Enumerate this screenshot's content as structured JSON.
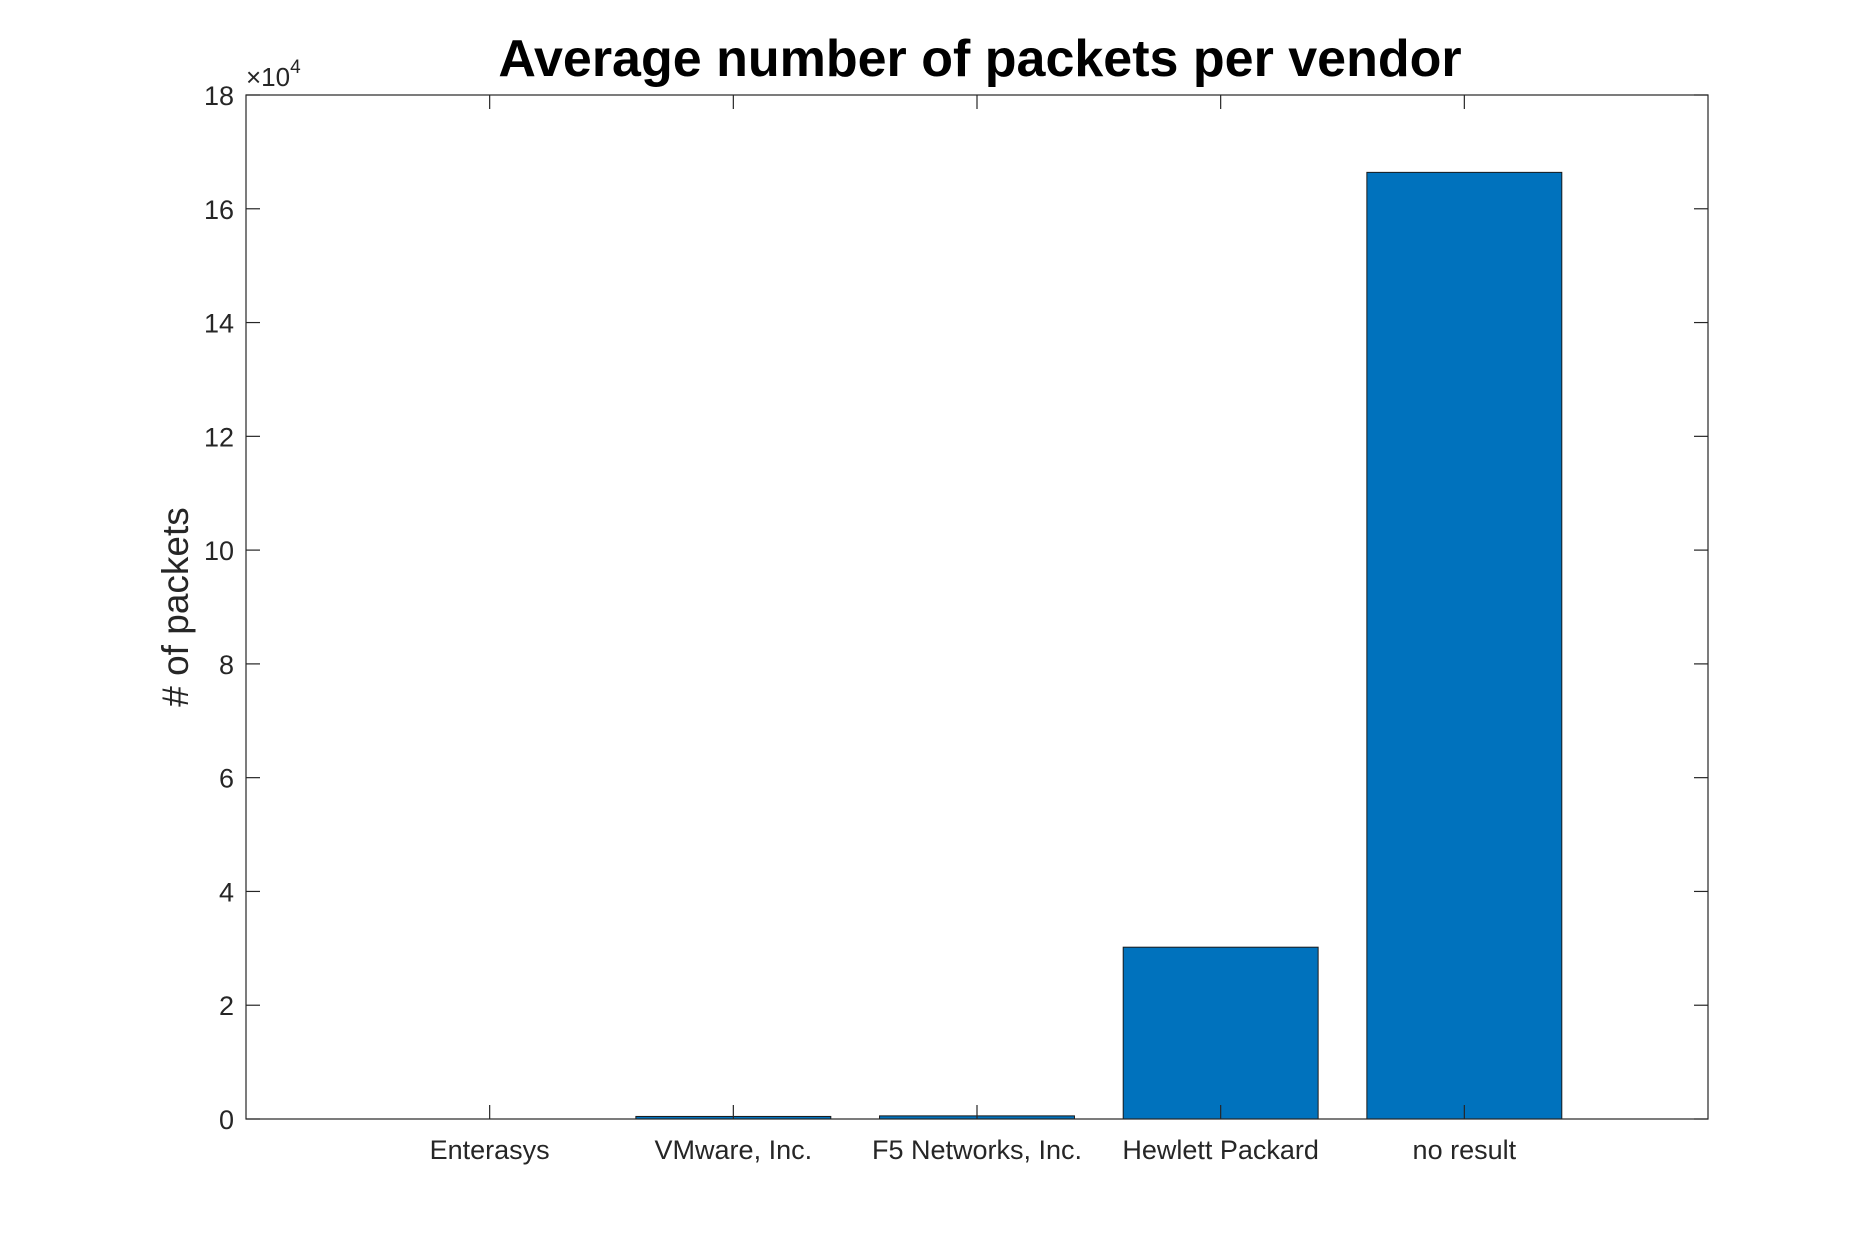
{
  "chart_data": {
    "type": "bar",
    "title": "Average number of packets per vendor",
    "xlabel": "",
    "ylabel": "# of packets",
    "categories": [
      "Enterasys",
      "VMware, Inc.",
      "F5 Networks, Inc.",
      "Hewlett Packard",
      "no result"
    ],
    "values": [
      0,
      450,
      550,
      30200,
      166400
    ],
    "ylim": [
      0,
      180000
    ],
    "yticks": [
      0,
      20000,
      40000,
      60000,
      80000,
      100000,
      120000,
      140000,
      160000,
      180000
    ],
    "ytick_labels": [
      "0",
      "2",
      "4",
      "6",
      "8",
      "10",
      "12",
      "14",
      "16",
      "18"
    ],
    "y_exponent_base": "×10",
    "y_exponent_power": "4",
    "grid": false,
    "bar_color": "#0072BD"
  }
}
